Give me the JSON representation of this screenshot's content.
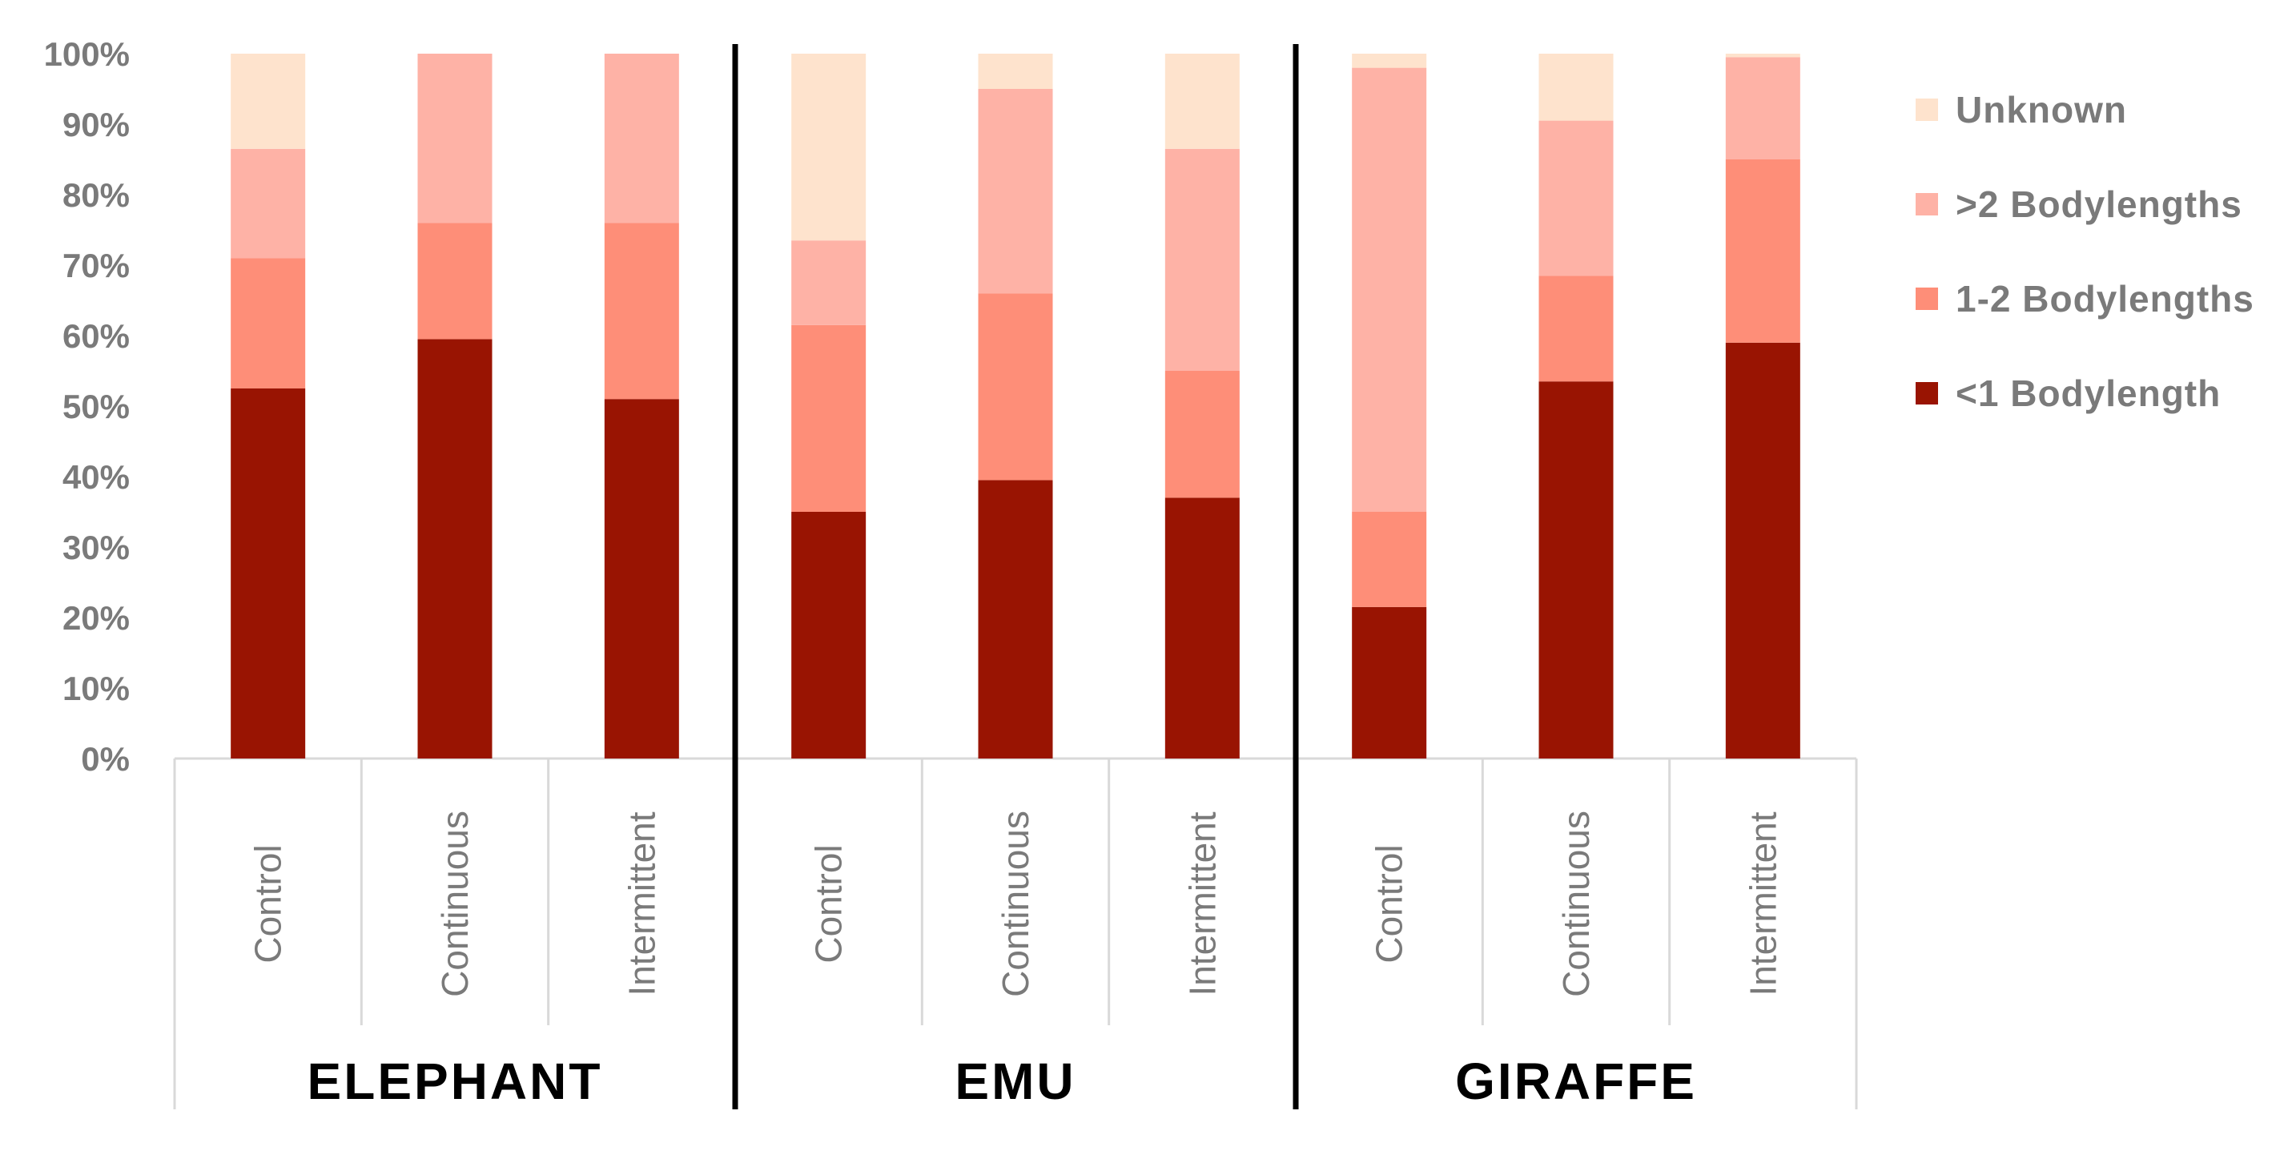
{
  "chart_data": {
    "type": "bar",
    "stacked": true,
    "groups": [
      {
        "label": "ELEPHANT",
        "categories": [
          "Control",
          "Continuous",
          "Intermittent"
        ]
      },
      {
        "label": "EMU",
        "categories": [
          "Control",
          "Continuous",
          "Intermittent"
        ]
      },
      {
        "label": "GIRAFFE",
        "categories": [
          "Control",
          "Continuous",
          "Intermittent"
        ]
      }
    ],
    "series": [
      {
        "name": "<1 Bodylength",
        "color": "#991402",
        "values": [
          52.5,
          59.5,
          51,
          35,
          39.5,
          37,
          21.5,
          53.5,
          59
        ]
      },
      {
        "name": "1-2 Bodylengths",
        "color": "#fe8e78",
        "values": [
          18.5,
          16.5,
          25,
          26.5,
          26.5,
          18,
          13.5,
          15,
          26
        ]
      },
      {
        "name": ">2 Bodylengths",
        "color": "#feb2a6",
        "values": [
          15.5,
          24,
          24,
          12,
          29,
          31.5,
          63,
          22,
          14.5
        ]
      },
      {
        "name": "Unknown",
        "color": "#fee3cd",
        "values": [
          13.5,
          0,
          0,
          26.5,
          5,
          13.5,
          2,
          9.5,
          0.5
        ]
      }
    ],
    "ylim": [
      0,
      100
    ],
    "yticks": [
      "0%",
      "10%",
      "20%",
      "30%",
      "40%",
      "50%",
      "60%",
      "70%",
      "80%",
      "90%",
      "100%"
    ],
    "grid": false,
    "legend_position": "right",
    "legend_order": [
      "Unknown",
      ">2 Bodylengths",
      "1-2 Bodylengths",
      "<1 Bodylength"
    ]
  }
}
